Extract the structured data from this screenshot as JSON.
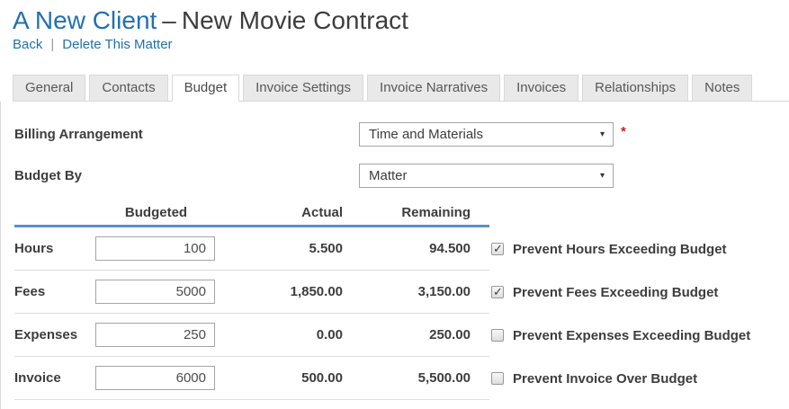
{
  "header": {
    "title_client": "A New Client",
    "title_dash": "–",
    "title_matter": "New Movie Contract",
    "back_link": "Back",
    "link_separator": "|",
    "delete_link": "Delete This Matter"
  },
  "active_tab": "Budget",
  "tabs": [
    {
      "label": "General"
    },
    {
      "label": "Contacts"
    },
    {
      "label": "Budget"
    },
    {
      "label": "Invoice Settings"
    },
    {
      "label": "Invoice Narratives"
    },
    {
      "label": "Invoices"
    },
    {
      "label": "Relationships"
    },
    {
      "label": "Notes"
    }
  ],
  "form": {
    "billing_arrangement_label": "Billing Arrangement",
    "billing_arrangement_value": "Time and Materials",
    "required_marker": "*",
    "budget_by_label": "Budget By",
    "budget_by_value": "Matter",
    "dropdown_caret": "▾"
  },
  "budget_table": {
    "columns": {
      "budgeted": "Budgeted",
      "actual": "Actual",
      "remaining": "Remaining"
    },
    "rows": [
      {
        "label": "Hours",
        "budgeted": "100",
        "actual": "5.500",
        "remaining": "94.500",
        "checked": true,
        "checkbox_label": "Prevent Hours Exceeding Budget"
      },
      {
        "label": "Fees",
        "budgeted": "5000",
        "actual": "1,850.00",
        "remaining": "3,150.00",
        "checked": true,
        "checkbox_label": "Prevent Fees Exceeding Budget"
      },
      {
        "label": "Expenses",
        "budgeted": "250",
        "actual": "0.00",
        "remaining": "250.00",
        "checked": false,
        "checkbox_label": "Prevent Expenses Exceeding Budget"
      },
      {
        "label": "Invoice",
        "budgeted": "6000",
        "actual": "500.00",
        "remaining": "5,500.00",
        "checked": false,
        "checkbox_label": "Prevent Invoice Over Budget"
      }
    ]
  },
  "colors": {
    "link_blue": "#2270b2",
    "header_underline_blue": "#5b91c9",
    "required_red": "#cc2222",
    "text_dark": "#3d3d3d",
    "tab_inactive_bg": "#e9e9e9",
    "border_gray": "#d8d8d8",
    "row_separator": "#dddddd"
  }
}
